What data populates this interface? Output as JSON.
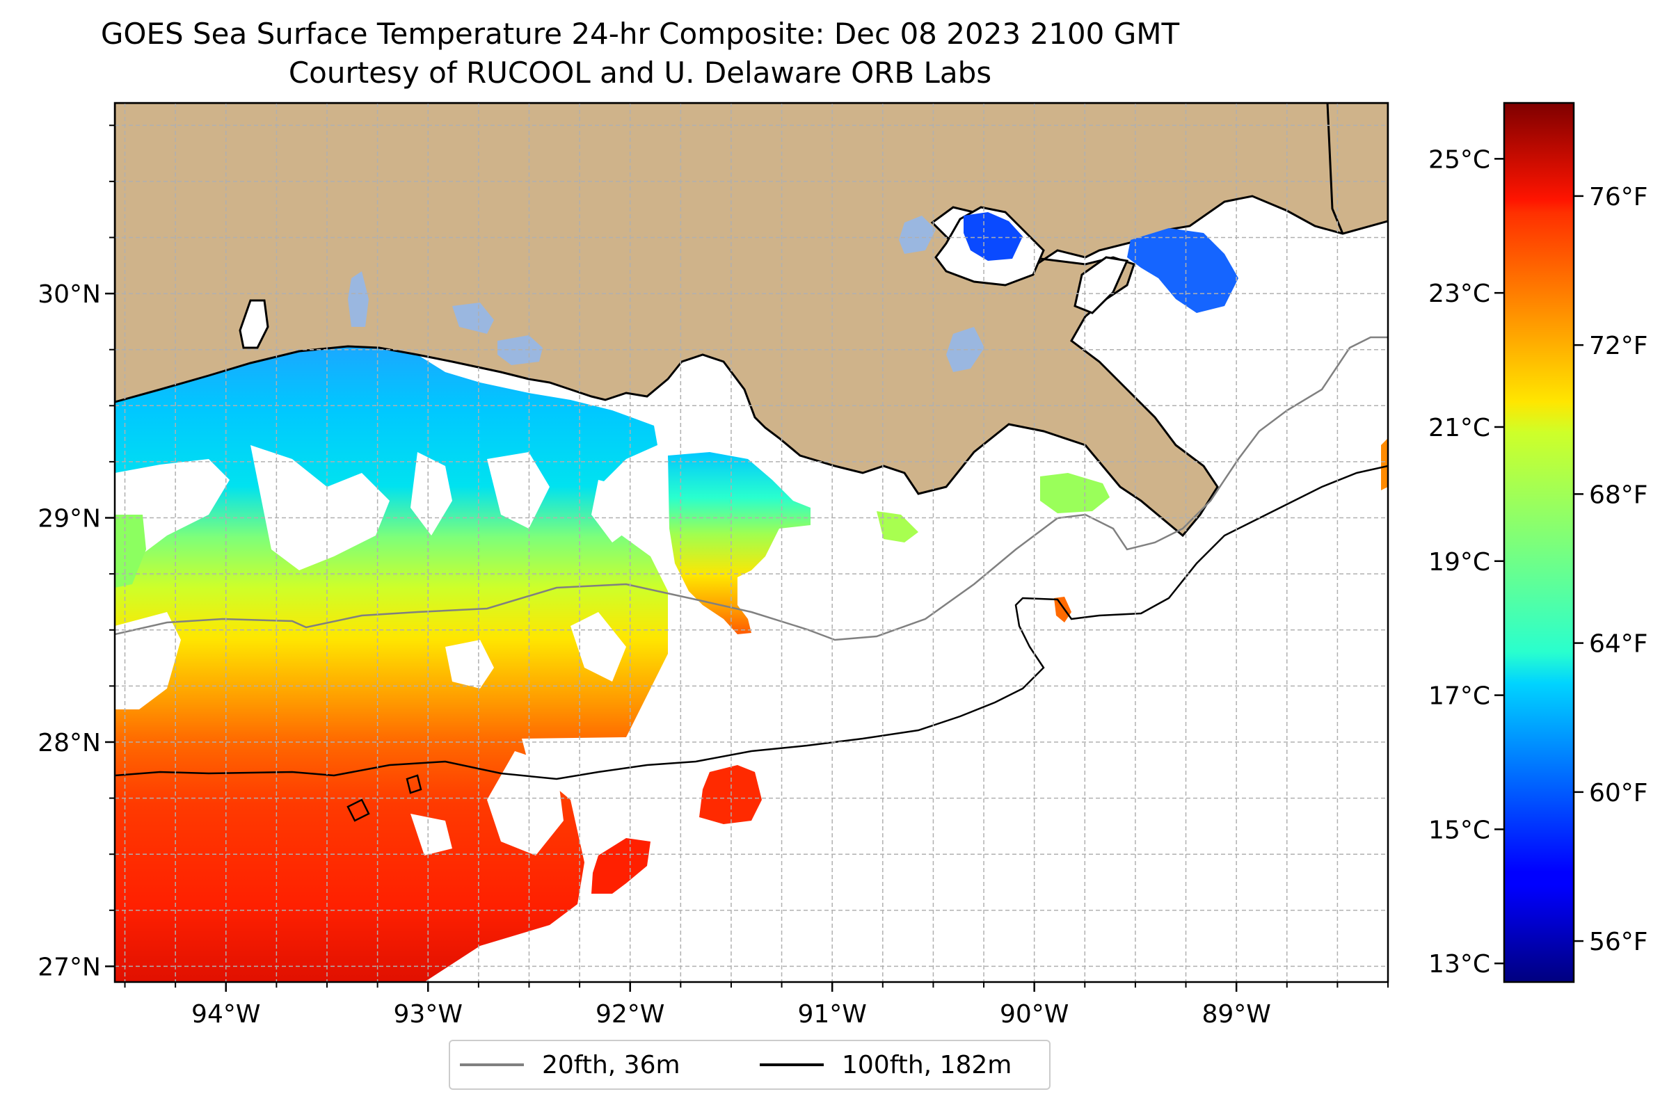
{
  "title": {
    "line1": "GOES Sea Surface Temperature 24-hr Composite: Dec 08 2023 2100 GMT",
    "line2": "Courtesy of RUCOOL and U. Delaware ORB Labs"
  },
  "map": {
    "lon_range": [
      -94.55,
      -88.25
    ],
    "lat_range": [
      26.93,
      30.85
    ],
    "lon_ticks": [
      {
        "value": -94,
        "label": "94°W"
      },
      {
        "value": -93,
        "label": "93°W"
      },
      {
        "value": -92,
        "label": "92°W"
      },
      {
        "value": -91,
        "label": "91°W"
      },
      {
        "value": -90,
        "label": "90°W"
      },
      {
        "value": -89,
        "label": "89°W"
      }
    ],
    "lat_ticks": [
      {
        "value": 27,
        "label": "27°N"
      },
      {
        "value": 28,
        "label": "28°N"
      },
      {
        "value": 29,
        "label": "29°N"
      },
      {
        "value": 30,
        "label": "30°N"
      }
    ],
    "grid": true,
    "colors": {
      "land": "#cfb38a",
      "ocean_no_data": "#ffffff",
      "inland_water": "#9ab7e0",
      "contour_20fth": "#808080",
      "contour_100fth": "#000000"
    }
  },
  "colorbar": {
    "colormap": "jet",
    "fahrenheit_ticks": [
      {
        "value": 56,
        "label": "56°F"
      },
      {
        "value": 60,
        "label": "60°F"
      },
      {
        "value": 64,
        "label": "64°F"
      },
      {
        "value": 68,
        "label": "68°F"
      },
      {
        "value": 72,
        "label": "72°F"
      },
      {
        "value": 76,
        "label": "76°F"
      }
    ],
    "celsius_ticks": [
      {
        "value": 13,
        "label": "13°C"
      },
      {
        "value": 15,
        "label": "15°C"
      },
      {
        "value": 17,
        "label": "17°C"
      },
      {
        "value": 19,
        "label": "19°C"
      },
      {
        "value": 21,
        "label": "21°C"
      },
      {
        "value": 23,
        "label": "23°C"
      },
      {
        "value": 25,
        "label": "25°C"
      }
    ]
  },
  "legend": {
    "items": [
      {
        "label": "20fth, 36m",
        "color": "#808080"
      },
      {
        "label": "100fth, 182m",
        "color": "#000000"
      }
    ]
  }
}
